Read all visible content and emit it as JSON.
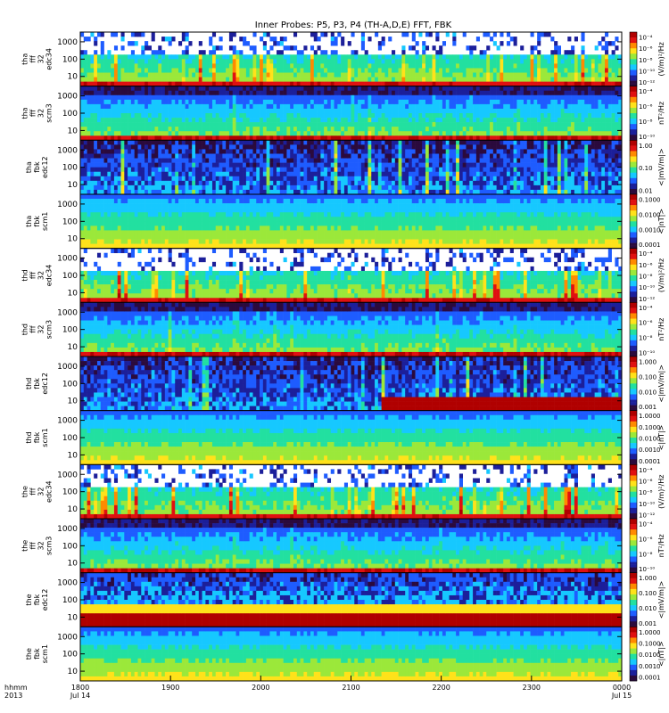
{
  "chart_data": {
    "type": "heatmap",
    "title": "Inner Probes: P5, P3, P4 (TH-A,D,E) FFT, FBK",
    "x_axis": {
      "label_line1": "hhmm",
      "label_line2": "2013",
      "ticks": [
        "1800",
        "1900",
        "2000",
        "2100",
        "2200",
        "2300",
        "0000"
      ],
      "date_ticks": {
        "start": "Jul 14",
        "end": "Jul 15"
      }
    },
    "panels": [
      {
        "id": "tha-fff32-edc34",
        "ylabel": [
          "tha",
          "fff",
          "32",
          "edc34"
        ],
        "yticks": [
          "1000",
          "100",
          "10"
        ],
        "cbar_ticks": [
          "10⁻⁴",
          "10⁻⁶",
          "10⁻⁸",
          "10⁻¹⁰",
          "10⁻¹²"
        ],
        "cbar_label": "(V/m)²/Hz",
        "style": "wave_edc",
        "variability": 0.8,
        "background_level": 0.1
      },
      {
        "id": "tha-fff32-scm3",
        "ylabel": [
          "tha",
          "fff",
          "32",
          "scm3"
        ],
        "yticks": [
          "1000",
          "100",
          "10"
        ],
        "cbar_ticks": [
          "10⁻⁴",
          "10⁻⁶",
          "10⁻⁸",
          "10⁻¹⁰"
        ],
        "cbar_label": "nT²/Hz",
        "style": "scm_fff",
        "variability": 0.3,
        "background_level": 0.1
      },
      {
        "id": "tha-fbk-edc12",
        "ylabel": [
          "tha",
          "fbk",
          "edc12"
        ],
        "yticks": [
          "1000",
          "100",
          "10"
        ],
        "cbar_ticks": [
          "1.00",
          "0.10",
          "0.01"
        ],
        "cbar_label": "<|mV/m|>",
        "style": "fbk_edc",
        "variability": 0.6,
        "background_level": 0.0
      },
      {
        "id": "tha-fbk-scm1",
        "ylabel": [
          "tha",
          "fbk",
          "scm1"
        ],
        "yticks": [
          "1000",
          "100",
          "10"
        ],
        "cbar_ticks": [
          "0.1000",
          "0.0100",
          "0.0010",
          "0.0001"
        ],
        "cbar_label": "<|nT|>",
        "style": "fbk_scm",
        "variability": 0.2,
        "background_level": 0.0
      },
      {
        "id": "thd-fff32-edc34",
        "ylabel": [
          "thd",
          "fff",
          "32",
          "edc34"
        ],
        "yticks": [
          "1000",
          "100",
          "10"
        ],
        "cbar_ticks": [
          "10⁻⁴",
          "10⁻⁶",
          "10⁻⁸",
          "10⁻¹⁰",
          "10⁻¹²"
        ],
        "cbar_label": "(V/m)²/Hz",
        "style": "wave_edc",
        "variability": 0.6,
        "background_level": 0.1
      },
      {
        "id": "thd-fff32-scm3",
        "ylabel": [
          "thd",
          "fff",
          "32",
          "scm3"
        ],
        "yticks": [
          "1000",
          "100",
          "10"
        ],
        "cbar_ticks": [
          "10⁻⁴",
          "10⁻⁶",
          "10⁻⁸",
          "10⁻¹⁰"
        ],
        "cbar_label": "nT²/Hz",
        "style": "scm_fff",
        "variability": 0.35,
        "background_level": 0.1
      },
      {
        "id": "thd-fbk-edc12",
        "ylabel": [
          "thd",
          "fbk",
          "edc12"
        ],
        "yticks": [
          "1000",
          "100",
          "10"
        ],
        "cbar_ticks": [
          "1.000",
          "0.100",
          "0.010",
          "0.001"
        ],
        "cbar_label": "<|mV/m|>",
        "style": "fbk_edc_event",
        "variability": 0.6,
        "background_level": 0.0
      },
      {
        "id": "thd-fbk-scm1",
        "ylabel": [
          "thd",
          "fbk",
          "scm1"
        ],
        "yticks": [
          "1000",
          "100",
          "10"
        ],
        "cbar_ticks": [
          "1.0000",
          "0.1000",
          "0.0100",
          "0.0010",
          "0.0001"
        ],
        "cbar_label": "<|nT|>",
        "style": "fbk_scm",
        "variability": 0.2,
        "background_level": 0.0
      },
      {
        "id": "the-fff32-edc34",
        "ylabel": [
          "the",
          "fff",
          "32",
          "edc34"
        ],
        "yticks": [
          "1000",
          "100",
          "10"
        ],
        "cbar_ticks": [
          "10⁻⁴",
          "10⁻⁶",
          "10⁻⁸",
          "10⁻¹⁰",
          "10⁻¹²"
        ],
        "cbar_label": "(V/m)²/Hz",
        "style": "wave_edc",
        "variability": 1.0,
        "background_level": 0.1
      },
      {
        "id": "the-fff32-scm3",
        "ylabel": [
          "the",
          "fff",
          "32",
          "scm3"
        ],
        "yticks": [
          "1000",
          "100",
          "10"
        ],
        "cbar_ticks": [
          "10⁻⁴",
          "10⁻⁶",
          "10⁻⁸",
          "10⁻¹⁰"
        ],
        "cbar_label": "nT²/Hz",
        "style": "scm_fff",
        "variability": 0.3,
        "background_level": 0.1
      },
      {
        "id": "the-fbk-edc12",
        "ylabel": [
          "the",
          "fbk",
          "edc12"
        ],
        "yticks": [
          "1000",
          "100",
          "10"
        ],
        "cbar_ticks": [
          "1.000",
          "0.100",
          "0.010",
          "0.001"
        ],
        "cbar_label": "<|mV/m|>",
        "style": "fbk_edc_high",
        "variability": 0.4,
        "background_level": 0.0
      },
      {
        "id": "the-fbk-scm1",
        "ylabel": [
          "the",
          "fbk",
          "scm1"
        ],
        "yticks": [
          "1000",
          "100",
          "10"
        ],
        "cbar_ticks": [
          "1.0000",
          "0.1000",
          "0.0100",
          "0.0010",
          "0.0001"
        ],
        "cbar_label": "<|nT|>",
        "style": "fbk_scm",
        "variability": 0.2,
        "background_level": 0.0
      }
    ],
    "colormap": [
      "#2b0a3d",
      "#1c1f9a",
      "#1e5cff",
      "#16c8ff",
      "#22e0a0",
      "#9be83a",
      "#ffe21a",
      "#ff8a00",
      "#e01010",
      "#b00000"
    ]
  }
}
